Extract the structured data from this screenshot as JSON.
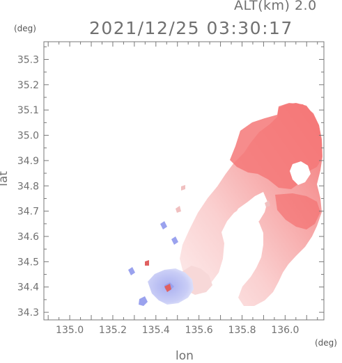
{
  "header": {
    "altitude_label": "ALT(km)  2.0",
    "timestamp": "2021/12/25 03:30:17",
    "unit_top_left": "(deg)",
    "unit_bottom_right": "(deg)"
  },
  "axes": {
    "ylabel": "lat",
    "xlabel": "lon",
    "x_ticks": [
      "135.0",
      "135.2",
      "135.4",
      "135.6",
      "135.8",
      "136.0"
    ],
    "y_ticks": [
      "35.3",
      "35.2",
      "35.1",
      "35.0",
      "34.9",
      "34.8",
      "34.7",
      "34.6",
      "34.5",
      "34.4",
      "34.3"
    ],
    "xlim": [
      134.88,
      136.18
    ],
    "ylim": [
      34.27,
      35.37
    ]
  },
  "colors": {
    "receding_strong": "#f47878",
    "receding_mid": "#f8a8a8",
    "receding_weak": "#fcd6d6",
    "approaching": "#c4c8f4",
    "approaching_strong": "#9aa2ee",
    "frame": "#777777"
  }
}
